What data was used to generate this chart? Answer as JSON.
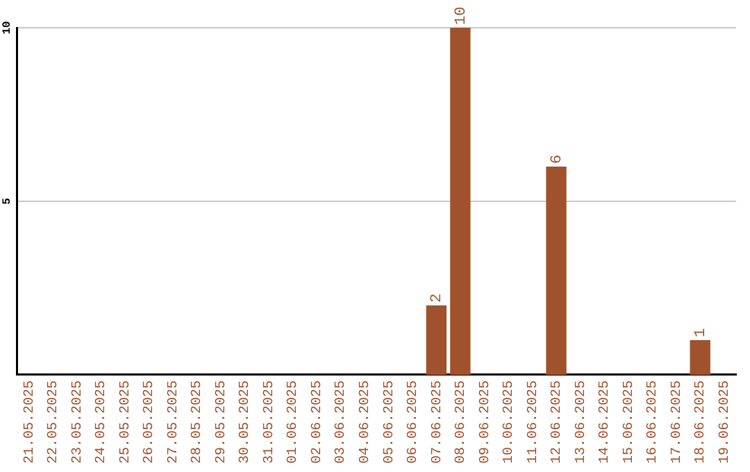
{
  "chart_data": {
    "type": "bar",
    "categories": [
      "21.05.2025",
      "22.05.2025",
      "23.05.2025",
      "24.05.2025",
      "25.05.2025",
      "26.05.2025",
      "27.05.2025",
      "28.05.2025",
      "29.05.2025",
      "30.05.2025",
      "31.05.2025",
      "01.06.2025",
      "02.06.2025",
      "03.06.2025",
      "04.06.2025",
      "05.06.2025",
      "06.06.2025",
      "07.06.2025",
      "08.06.2025",
      "09.06.2025",
      "10.06.2025",
      "11.06.2025",
      "12.06.2025",
      "13.06.2025",
      "14.06.2025",
      "15.06.2025",
      "16.06.2025",
      "17.06.2025",
      "18.06.2025",
      "19.06.2025"
    ],
    "values": [
      0,
      0,
      0,
      0,
      0,
      0,
      0,
      0,
      0,
      0,
      0,
      0,
      0,
      0,
      0,
      0,
      0,
      2,
      10,
      0,
      0,
      0,
      6,
      0,
      0,
      0,
      0,
      0,
      1,
      0
    ],
    "value_labels": [
      null,
      null,
      null,
      null,
      null,
      null,
      null,
      null,
      null,
      null,
      null,
      null,
      null,
      null,
      null,
      null,
      null,
      "2",
      "10",
      null,
      null,
      null,
      "6",
      null,
      null,
      null,
      null,
      null,
      "1",
      null
    ],
    "color": "#a0522d",
    "ylim": [
      0,
      10
    ],
    "yticks": [
      5,
      10
    ],
    "grid": "y",
    "legend": false
  }
}
